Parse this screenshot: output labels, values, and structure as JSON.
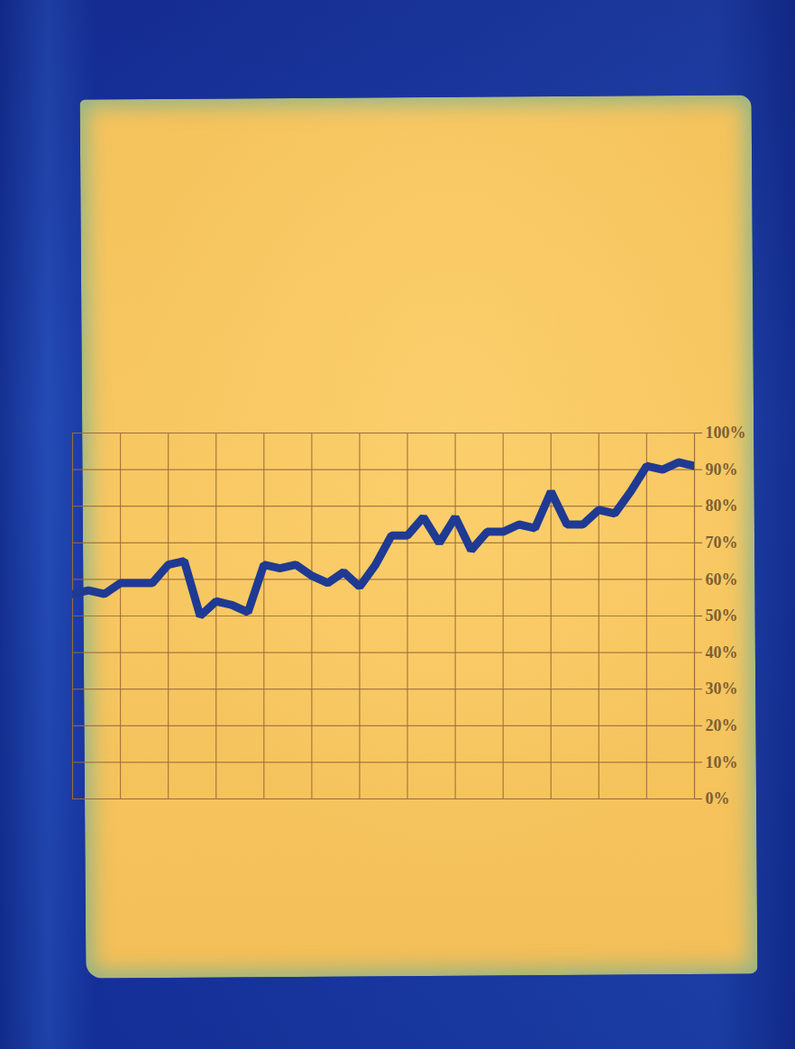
{
  "chart_data": {
    "type": "line",
    "x": [
      0,
      1,
      2,
      3,
      4,
      5,
      6,
      7,
      8,
      9,
      10,
      11,
      12,
      13,
      14,
      15,
      16,
      17,
      18,
      19,
      20,
      21,
      22,
      23,
      24,
      25,
      26,
      27,
      28,
      29,
      30,
      31,
      32,
      33,
      34,
      35,
      36,
      37,
      38,
      39
    ],
    "values": [
      56,
      57,
      56,
      59,
      59,
      59,
      64,
      65,
      50,
      54,
      53,
      51,
      64,
      63,
      64,
      61,
      59,
      62,
      58,
      64,
      72,
      72,
      77,
      70,
      77,
      68,
      73,
      73,
      75,
      74,
      84,
      75,
      75,
      79,
      78,
      84,
      91,
      90,
      92,
      91
    ],
    "color": "#1f3a93",
    "xlim": [
      0,
      39
    ],
    "xticks": [
      0,
      3,
      6,
      9,
      12,
      15,
      18,
      21,
      24,
      27,
      30,
      33,
      36,
      39
    ],
    "ylim": [
      0,
      100
    ],
    "yticks": [
      {
        "value": 0,
        "label": "0%"
      },
      {
        "value": 10,
        "label": "10%"
      },
      {
        "value": 20,
        "label": "20%"
      },
      {
        "value": 30,
        "label": "30%"
      },
      {
        "value": 40,
        "label": "40%"
      },
      {
        "value": 50,
        "label": "50%"
      },
      {
        "value": 60,
        "label": "60%"
      },
      {
        "value": 70,
        "label": "70%"
      },
      {
        "value": 80,
        "label": "80%"
      },
      {
        "value": 90,
        "label": "90%"
      },
      {
        "value": 100,
        "label": "100%"
      }
    ],
    "grid": true,
    "tick_labels": "y"
  }
}
